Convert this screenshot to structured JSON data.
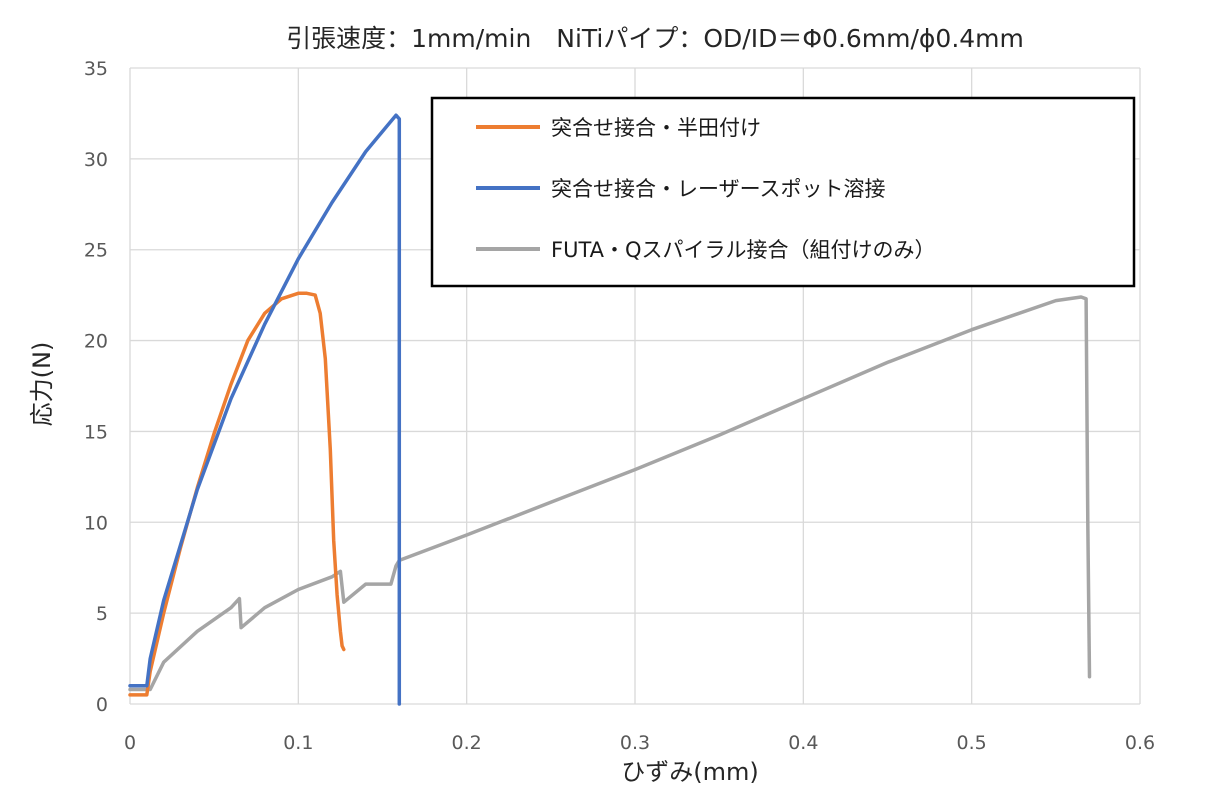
{
  "title": "引張速度：1mm/min　NiTiパイプ：OD/ID＝Φ0.6mm/ϕ0.4mm",
  "chart_data": {
    "type": "line",
    "title": "引張速度：1mm/min　NiTiパイプ：OD/ID＝Φ0.6mm/ϕ0.4mm",
    "xlabel": "ひずみ(mm)",
    "ylabel": "応力(N)",
    "xlim": [
      0,
      0.6
    ],
    "ylim": [
      0,
      35
    ],
    "xticks": [
      0,
      0.1,
      0.2,
      0.3,
      0.4,
      0.5,
      0.6
    ],
    "xtick_labels": [
      "0",
      "0.1",
      "0.2",
      "0.3",
      "0.4",
      "0.5",
      "0.6"
    ],
    "yticks": [
      0,
      5,
      10,
      15,
      20,
      25,
      30,
      35
    ],
    "ytick_labels": [
      "0",
      "5",
      "10",
      "15",
      "20",
      "25",
      "30",
      "35"
    ],
    "grid": true,
    "legend_position": "top-right",
    "series": [
      {
        "name": "突合せ接合・半田付け",
        "color": "#ED7D31",
        "x": [
          0,
          0.01,
          0.012,
          0.02,
          0.03,
          0.04,
          0.05,
          0.06,
          0.07,
          0.08,
          0.09,
          0.1,
          0.105,
          0.11,
          0.113,
          0.116,
          0.119,
          0.121,
          0.123,
          0.125,
          0.126,
          0.127
        ],
        "y": [
          0.5,
          0.5,
          1.8,
          5,
          8.6,
          11.9,
          14.9,
          17.6,
          20.0,
          21.5,
          22.3,
          22.6,
          22.6,
          22.5,
          21.5,
          19,
          14,
          9,
          6,
          4,
          3.2,
          3.0
        ]
      },
      {
        "name": "突合せ接合・レーザースポット溶接",
        "color": "#4472C4",
        "x": [
          0,
          0.01,
          0.012,
          0.02,
          0.04,
          0.06,
          0.08,
          0.1,
          0.12,
          0.14,
          0.158,
          0.16,
          0.16
        ],
        "y": [
          1,
          1,
          2.5,
          5.7,
          11.8,
          16.8,
          20.9,
          24.5,
          27.6,
          30.4,
          32.4,
          32.2,
          0
        ]
      },
      {
        "name": "FUTA・Qスパイラル接合（組付けのみ）",
        "color": "#A5A5A5",
        "x": [
          0,
          0.012,
          0.02,
          0.04,
          0.06,
          0.065,
          0.066,
          0.08,
          0.1,
          0.12,
          0.125,
          0.127,
          0.14,
          0.155,
          0.158,
          0.16,
          0.2,
          0.25,
          0.3,
          0.35,
          0.4,
          0.45,
          0.5,
          0.55,
          0.565,
          0.568,
          0.569,
          0.57
        ],
        "y": [
          0.8,
          0.8,
          2.3,
          4.0,
          5.3,
          5.8,
          4.2,
          5.3,
          6.3,
          7.0,
          7.3,
          5.6,
          6.6,
          6.6,
          7.6,
          7.9,
          9.3,
          11.1,
          12.9,
          14.8,
          16.8,
          18.8,
          20.6,
          22.2,
          22.4,
          22.3,
          10,
          1.5
        ]
      }
    ]
  }
}
